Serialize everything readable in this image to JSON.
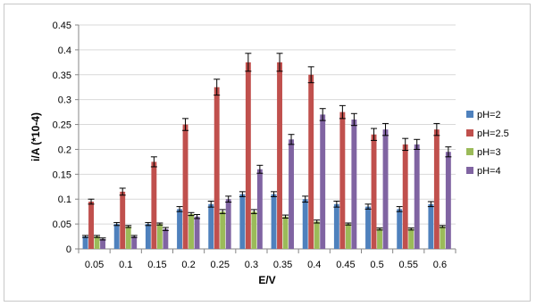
{
  "chart_data": {
    "type": "bar",
    "title": "",
    "xlabel": "E/V",
    "ylabel": "i/A (*10-4)",
    "ylim": [
      0,
      0.45
    ],
    "ytick_step": 0.05,
    "yticks": [
      "0",
      "0.05",
      "0.1",
      "0.15",
      "0.2",
      "0.25",
      "0.3",
      "0.35",
      "0.4",
      "0.45"
    ],
    "categories": [
      "0.05",
      "0.1",
      "0.15",
      "0.2",
      "0.25",
      "0.3",
      "0.35",
      "0.4",
      "0.45",
      "0.5",
      "0.55",
      "0.6"
    ],
    "grid": "horizontal",
    "legend_position": "right",
    "error_bars": true,
    "series": [
      {
        "name": "pH=2",
        "color": "#4f81bd",
        "values": [
          0.025,
          0.05,
          0.05,
          0.08,
          0.09,
          0.11,
          0.11,
          0.1,
          0.09,
          0.085,
          0.08,
          0.09
        ],
        "errors": [
          0.002,
          0.003,
          0.003,
          0.005,
          0.006,
          0.005,
          0.005,
          0.006,
          0.006,
          0.005,
          0.005,
          0.005
        ]
      },
      {
        "name": "pH=2.5",
        "color": "#c0504d",
        "values": [
          0.095,
          0.115,
          0.175,
          0.25,
          0.325,
          0.375,
          0.375,
          0.35,
          0.275,
          0.23,
          0.21,
          0.24
        ],
        "errors": [
          0.005,
          0.007,
          0.01,
          0.012,
          0.016,
          0.018,
          0.018,
          0.016,
          0.013,
          0.012,
          0.012,
          0.012
        ]
      },
      {
        "name": "pH=3",
        "color": "#9bbb59",
        "values": [
          0.025,
          0.045,
          0.05,
          0.07,
          0.075,
          0.075,
          0.065,
          0.055,
          0.05,
          0.04,
          0.04,
          0.045
        ],
        "errors": [
          0.002,
          0.002,
          0.002,
          0.003,
          0.004,
          0.004,
          0.003,
          0.003,
          0.002,
          0.002,
          0.002,
          0.002
        ]
      },
      {
        "name": "pH=4",
        "color": "#8064a2",
        "values": [
          0.02,
          0.025,
          0.04,
          0.065,
          0.1,
          0.16,
          0.22,
          0.27,
          0.26,
          0.24,
          0.21,
          0.195
        ],
        "errors": [
          0.002,
          0.002,
          0.003,
          0.004,
          0.006,
          0.008,
          0.01,
          0.012,
          0.012,
          0.012,
          0.01,
          0.01
        ]
      }
    ]
  }
}
